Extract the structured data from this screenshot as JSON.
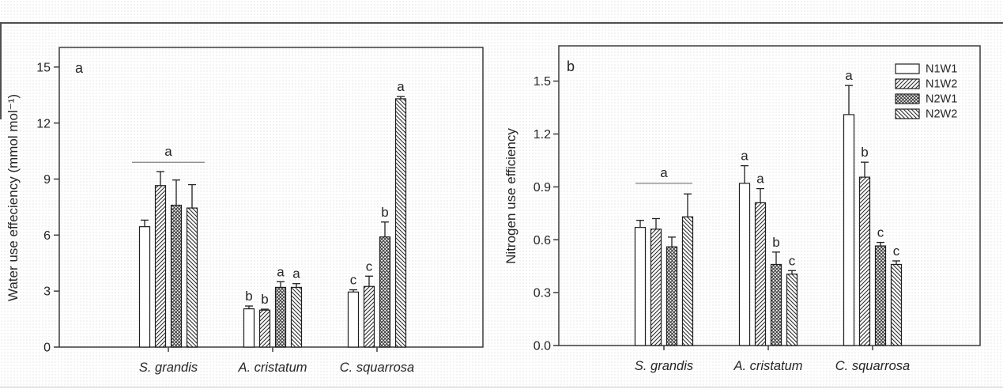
{
  "colors": {
    "ink": "#1f1f1f",
    "frame": "#3c3c3c",
    "hatch": "#2b2b2b",
    "group_line": "#808080",
    "bar_fill": "#ffffff",
    "background": "#ffffff"
  },
  "legend": {
    "position": "top-right",
    "items": [
      {
        "label": "N1W1",
        "pattern": "plain"
      },
      {
        "label": "N1W2",
        "pattern": "diag-up"
      },
      {
        "label": "N2W1",
        "pattern": "crosshatch"
      },
      {
        "label": "N2W2",
        "pattern": "diag-down"
      }
    ]
  },
  "chart_data": [
    {
      "panel": "a",
      "type": "bar",
      "title": "",
      "ylabel": "Water use effeciency (mmol mol⁻¹)",
      "xlabel": "",
      "categories": [
        "S. grandis",
        "A. cristatum",
        "C. squarrosa"
      ],
      "ytick_labels": [
        "0",
        "3",
        "6",
        "9",
        "12",
        "15"
      ],
      "ytick_values": [
        0,
        3,
        6,
        9,
        12,
        15
      ],
      "ylim": [
        0,
        16.05
      ],
      "grid": false,
      "legend_shown": false,
      "series": [
        {
          "name": "N1W1",
          "values": [
            6.45,
            2.05,
            2.95
          ],
          "errors": [
            0.35,
            0.15,
            0.12
          ],
          "letters": [
            "",
            "b",
            "c"
          ]
        },
        {
          "name": "N1W2",
          "values": [
            8.65,
            1.98,
            3.25
          ],
          "errors": [
            0.75,
            0.05,
            0.55
          ],
          "letters": [
            "",
            "b",
            "c"
          ]
        },
        {
          "name": "N2W1",
          "values": [
            7.6,
            3.2,
            5.9
          ],
          "errors": [
            1.35,
            0.3,
            0.8
          ],
          "letters": [
            "",
            "a",
            "b"
          ]
        },
        {
          "name": "N2W2",
          "values": [
            7.45,
            3.2,
            13.3
          ],
          "errors": [
            1.25,
            0.2,
            0.12
          ],
          "letters": [
            "",
            "a",
            "a"
          ]
        }
      ],
      "group_annotations": [
        {
          "category": "S. grandis",
          "letter": "a",
          "line_value": 9.9
        }
      ]
    },
    {
      "panel": "b",
      "type": "bar",
      "title": "",
      "ylabel": "Nitrogen use efficiency",
      "xlabel": "",
      "categories": [
        "S. grandis",
        "A. cristatum",
        "C. squarrosa"
      ],
      "ytick_labels": [
        "0.0",
        "0.3",
        "0.6",
        "0.9",
        "1.2",
        "1.5"
      ],
      "ytick_values": [
        0,
        0.3,
        0.6,
        0.9,
        1.2,
        1.5
      ],
      "ylim": [
        0,
        1.7
      ],
      "grid": false,
      "legend_shown": true,
      "series": [
        {
          "name": "N1W1",
          "values": [
            0.67,
            0.92,
            1.31
          ],
          "errors": [
            0.04,
            0.1,
            0.165
          ],
          "letters": [
            "",
            "a",
            "a"
          ]
        },
        {
          "name": "N1W2",
          "values": [
            0.66,
            0.81,
            0.955
          ],
          "errors": [
            0.06,
            0.08,
            0.085
          ],
          "letters": [
            "",
            "a",
            "b"
          ]
        },
        {
          "name": "N2W1",
          "values": [
            0.56,
            0.46,
            0.565
          ],
          "errors": [
            0.055,
            0.07,
            0.02
          ],
          "letters": [
            "",
            "b",
            "c"
          ]
        },
        {
          "name": "N2W2",
          "values": [
            0.73,
            0.405,
            0.46
          ],
          "errors": [
            0.13,
            0.02,
            0.02
          ],
          "letters": [
            "",
            "c",
            "c"
          ]
        }
      ],
      "group_annotations": [
        {
          "category": "S. grandis",
          "letter": "a",
          "line_value": 0.92
        }
      ]
    }
  ]
}
